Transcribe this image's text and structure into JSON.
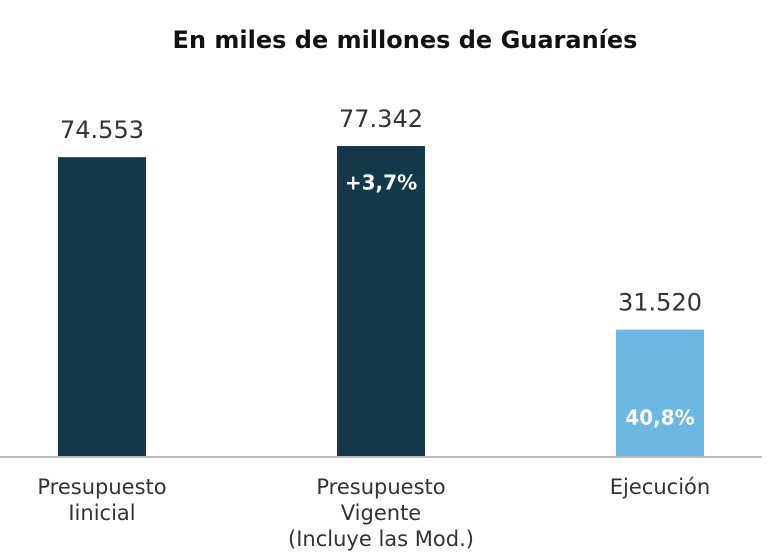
{
  "chart_data": {
    "type": "bar",
    "title": "En miles de millones de Guaraníes",
    "categories": [
      "Presupuesto\nIinicial",
      "Presupuesto\nVigente\n(Incluye las Mod.)",
      "Ejecución"
    ],
    "values": [
      74553,
      77342,
      31520
    ],
    "value_labels": [
      "74.553",
      "77.342",
      "31.520"
    ],
    "inner_labels": [
      null,
      "+3,7%",
      "40,8%"
    ],
    "colors": [
      "#15394b",
      "#15394b",
      "#6cb8e2"
    ]
  }
}
